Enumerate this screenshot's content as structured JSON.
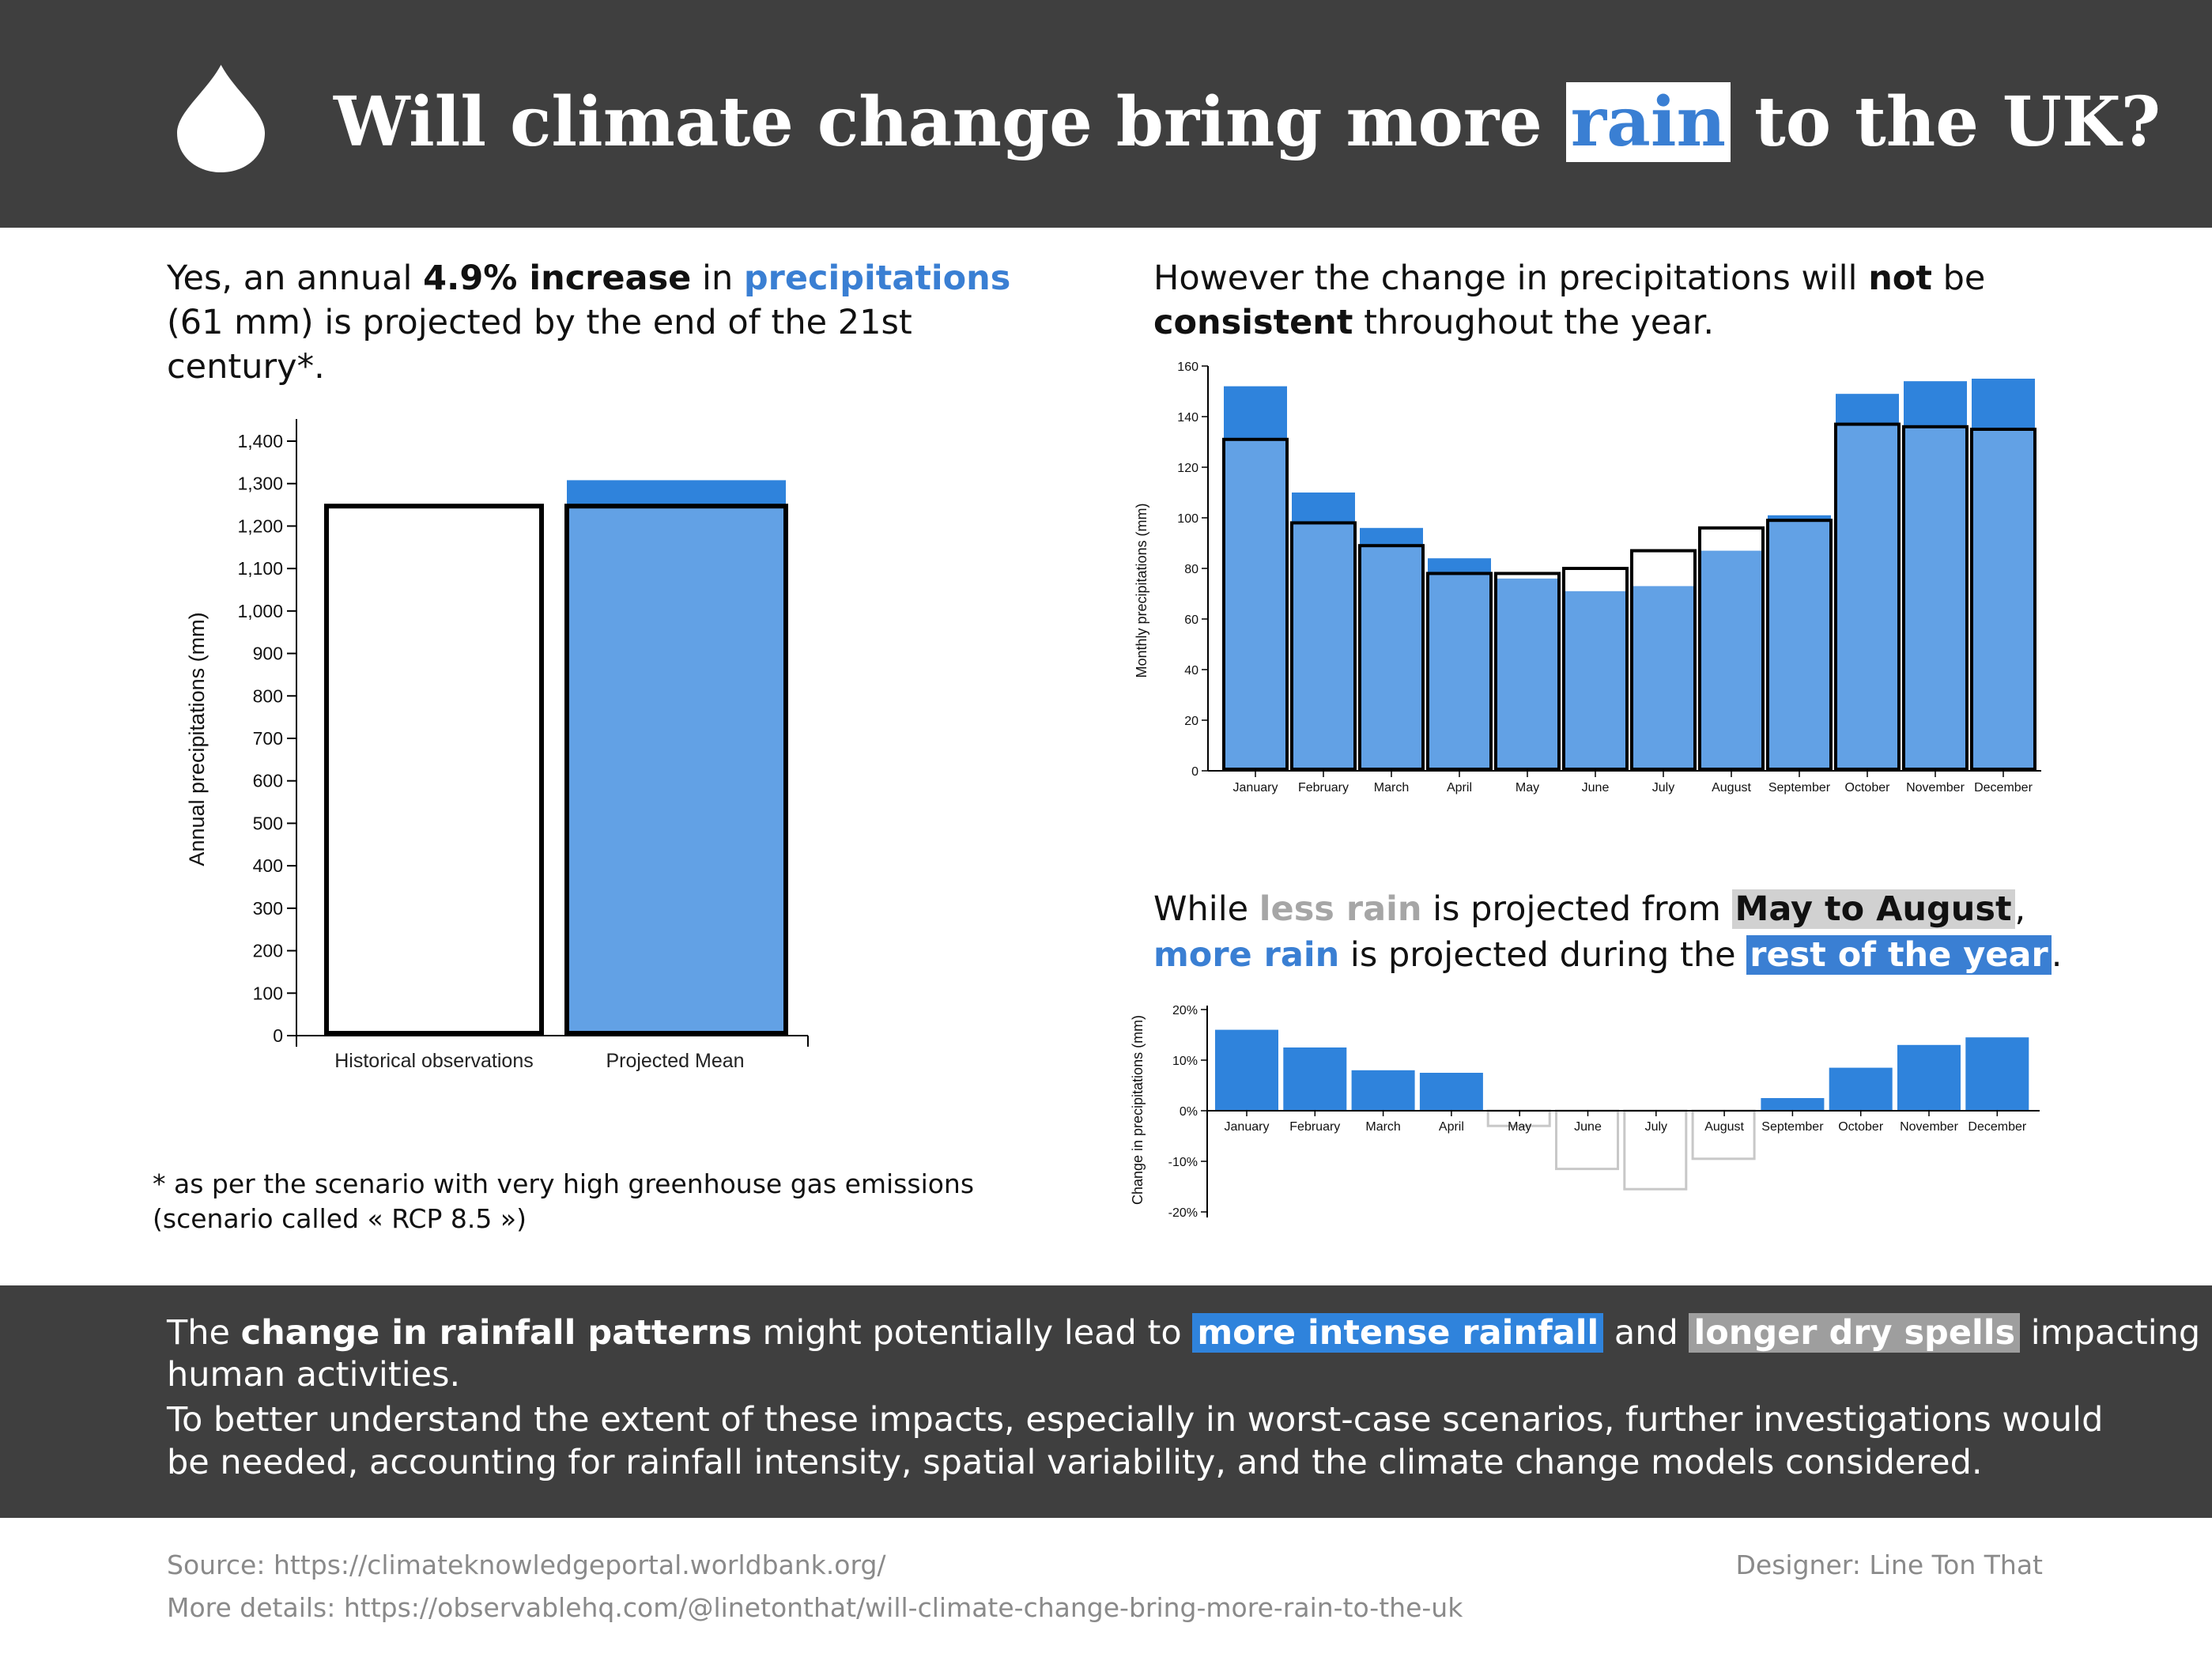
{
  "header": {
    "title_pre": "Will climate change bring more ",
    "title_hl": "rain",
    "title_post": " to the UK?",
    "icon": "raindrop-icon"
  },
  "intro": {
    "l1_a": "Yes, an annual ",
    "l1_b": "4.9% increase",
    "l1_c": " in ",
    "l1_d": "precipitations",
    "l2": "(61 mm)  is projected by the end of the 21st",
    "l3": "century*."
  },
  "note": {
    "l1": "* as per the scenario with very high greenhouse gas emissions",
    "l2": "(scenario called « RCP 8.5 »)"
  },
  "monthly_text": {
    "l1_a": "However the change in precipitations will ",
    "l1_b": "not",
    "l1_c": " be",
    "l2_a": "consistent",
    "l2_b": " throughout the year."
  },
  "change_text": {
    "l1_a": "While ",
    "l1_b": "less rain",
    "l1_c": " is projected from ",
    "l1_d": "May to August",
    "l1_e": ",",
    "l2_a": "more rain",
    "l2_b": " is projected during the ",
    "l2_c": "rest of the year",
    "l2_d": "."
  },
  "footer": {
    "l1_a": "The ",
    "l1_b": "change in rainfall patterns",
    "l1_c": " might potentially lead to ",
    "l1_d": "more intense rainfall",
    "l1_e": " and ",
    "l1_f": "longer dry spells",
    "l1_g": " impacting",
    "l2": "human activities.",
    "l3": "To better understand the extent of these impacts, especially in worst-case scenarios, further investigations would",
    "l4": "be needed, accounting for rainfall intensity, spatial variability, and the climate change models considered."
  },
  "credits": {
    "source": "Source: https://climateknowledgeportal.worldbank.org/",
    "details": "More details: https://observablehq.com/@linetonthat/will-climate-change-bring-more-rain-to-the-uk",
    "designer": "Designer: Line Ton That"
  },
  "colors": {
    "projected_increase": "#2f83dc",
    "projected_fill": "#62a1e5",
    "historical_outline": "#000000",
    "decrease_outline": "#c8c8c8",
    "header_bg": "#3f3f3f"
  },
  "chart_data": [
    {
      "type": "bar",
      "ylabel": "Annual precipitations (mm)",
      "categories": [
        "Historical observations",
        "Projected Mean"
      ],
      "historical": 1247,
      "projected": 1308,
      "ylim": [
        0,
        1400
      ],
      "yticks": [
        "0",
        "100",
        "200",
        "300",
        "400",
        "500",
        "600",
        "700",
        "800",
        "900",
        "1,000",
        "1,100",
        "1,200",
        "1,300",
        "1,400"
      ]
    },
    {
      "type": "bar",
      "ylabel": "Monthly precipitations (mm)",
      "categories": [
        "January",
        "February",
        "March",
        "April",
        "May",
        "June",
        "July",
        "August",
        "September",
        "October",
        "November",
        "December"
      ],
      "series": [
        {
          "name": "Historical observations",
          "values": [
            131,
            98,
            89,
            78,
            78,
            80,
            87,
            96,
            99,
            137,
            136,
            135
          ]
        },
        {
          "name": "Projected Mean",
          "values": [
            152,
            110,
            96,
            84,
            76,
            71,
            73,
            87,
            101,
            149,
            154,
            155
          ]
        }
      ],
      "ylim": [
        0,
        160
      ],
      "yticks": [
        "0",
        "20",
        "40",
        "60",
        "80",
        "100",
        "120",
        "140",
        "160"
      ]
    },
    {
      "type": "bar",
      "ylabel": "Change in precipitations (mm)",
      "categories": [
        "January",
        "February",
        "March",
        "April",
        "May",
        "June",
        "July",
        "August",
        "September",
        "October",
        "November",
        "December"
      ],
      "values": [
        16,
        12.5,
        8,
        7.5,
        -3,
        -11.5,
        -15.5,
        -9.5,
        2.5,
        8.5,
        13,
        14.5
      ],
      "ylim": [
        -20,
        20
      ],
      "yticks": [
        "-20%",
        "-10%",
        "0%",
        "10%",
        "20%"
      ]
    }
  ]
}
